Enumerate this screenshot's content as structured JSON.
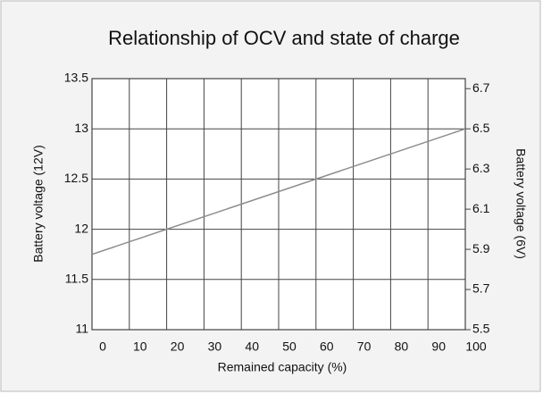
{
  "chart_data": {
    "type": "line",
    "title": "Relationship of OCV and state of charge",
    "xlabel": "Remained capacity (%)",
    "ylabel": "Battery voltage (12V)",
    "y2label": "Battery voltage (6V)",
    "x": [
      0,
      100
    ],
    "series": [
      {
        "name": "OCV",
        "color": "#8c8c8c",
        "values": [
          11.75,
          13
        ]
      }
    ],
    "xlim": [
      0,
      100
    ],
    "xticks": [
      0,
      10,
      20,
      30,
      40,
      50,
      60,
      70,
      80,
      90,
      100
    ],
    "ylim": [
      11,
      13.5
    ],
    "yticks": [
      11,
      11.5,
      12,
      12.5,
      13,
      13.5
    ],
    "y2lim": [
      5.5,
      6.75
    ],
    "y2ticks": [
      5.5,
      5.7,
      5.9,
      6.1,
      6.3,
      6.5,
      6.7
    ],
    "grid": true
  }
}
